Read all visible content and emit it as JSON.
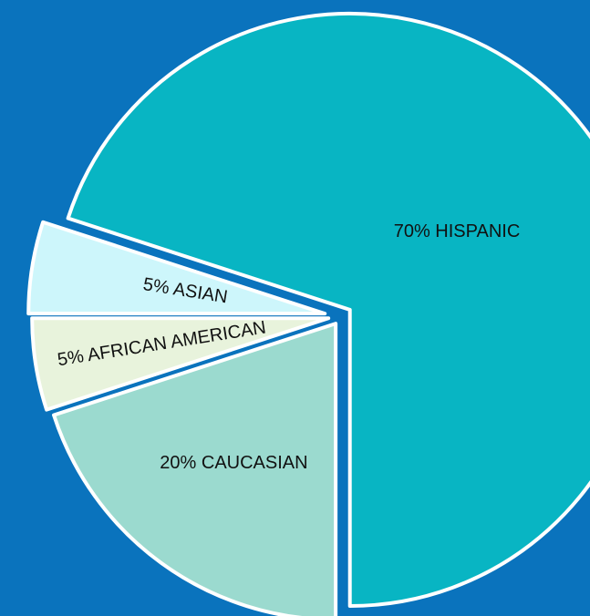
{
  "chart_data": {
    "type": "pie",
    "title": "",
    "slices": [
      {
        "label": "70% HISPANIC",
        "category": "HISPANIC",
        "value": 70,
        "color": "#08b5c3"
      },
      {
        "label": "20% CAUCASIAN",
        "category": "CAUCASIAN",
        "value": 20,
        "color": "#9bdacf"
      },
      {
        "label": "5% AFRICAN AMERICAN",
        "category": "AFRICAN AMERICAN",
        "value": 5,
        "color": "#e8f3dc"
      },
      {
        "label": "5% ASIAN",
        "category": "ASIAN",
        "value": 5,
        "color": "#cdf6fb"
      }
    ],
    "exploded": true,
    "legend": "none"
  },
  "colors": {
    "background": "#0a73bd",
    "slice_outline": "#ffffff"
  }
}
